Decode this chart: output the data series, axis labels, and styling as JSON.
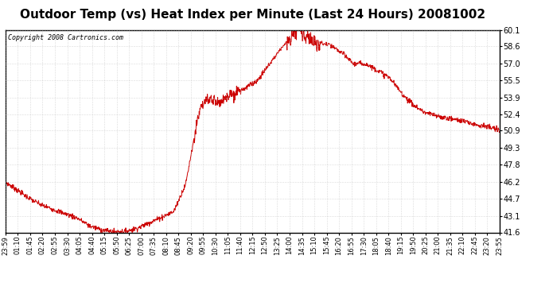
{
  "title": "Outdoor Temp (vs) Heat Index per Minute (Last 24 Hours) 20081002",
  "copyright": "Copyright 2008 Cartronics.com",
  "line_color": "#cc0000",
  "background_color": "#ffffff",
  "plot_bg_color": "#ffffff",
  "grid_color": "#bbbbbb",
  "yticks": [
    41.6,
    43.1,
    44.7,
    46.2,
    47.8,
    49.3,
    50.9,
    52.4,
    53.9,
    55.5,
    57.0,
    58.6,
    60.1
  ],
  "ylim": [
    41.6,
    60.1
  ],
  "xtick_labels": [
    "23:59",
    "01:10",
    "01:45",
    "02:20",
    "02:55",
    "03:30",
    "04:05",
    "04:40",
    "05:15",
    "05:50",
    "06:25",
    "07:00",
    "07:35",
    "08:10",
    "08:45",
    "09:20",
    "09:55",
    "10:30",
    "11:05",
    "11:40",
    "12:15",
    "12:50",
    "13:25",
    "14:00",
    "14:35",
    "15:10",
    "15:45",
    "16:20",
    "16:55",
    "17:30",
    "18:05",
    "18:40",
    "19:15",
    "19:50",
    "20:25",
    "21:00",
    "21:35",
    "22:10",
    "22:45",
    "23:20",
    "23:55"
  ],
  "title_fontsize": 11,
  "copyright_fontsize": 6,
  "tick_fontsize": 6,
  "ytick_fontsize": 7,
  "control_t": [
    0,
    70,
    105,
    140,
    175,
    210,
    245,
    280,
    315,
    350,
    385,
    420,
    455,
    490,
    525,
    560,
    580,
    595,
    620,
    640,
    665,
    700,
    735,
    770,
    805,
    830,
    845,
    855,
    865,
    875,
    890,
    910,
    930,
    945,
    980,
    1015,
    1050,
    1085,
    1120,
    1155,
    1190,
    1225,
    1260,
    1295,
    1330,
    1365,
    1400,
    1440
  ],
  "control_v": [
    46.2,
    44.7,
    44.1,
    43.7,
    43.3,
    42.9,
    42.2,
    41.85,
    41.65,
    41.7,
    42.0,
    42.5,
    43.0,
    43.5,
    46.0,
    52.0,
    53.5,
    53.8,
    53.5,
    53.9,
    54.3,
    54.8,
    55.5,
    57.0,
    58.5,
    59.3,
    60.0,
    60.1,
    59.8,
    59.5,
    59.2,
    58.9,
    58.8,
    58.7,
    58.0,
    57.0,
    57.0,
    56.4,
    55.7,
    54.3,
    53.2,
    52.5,
    52.2,
    52.0,
    51.8,
    51.5,
    51.3,
    50.9
  ]
}
